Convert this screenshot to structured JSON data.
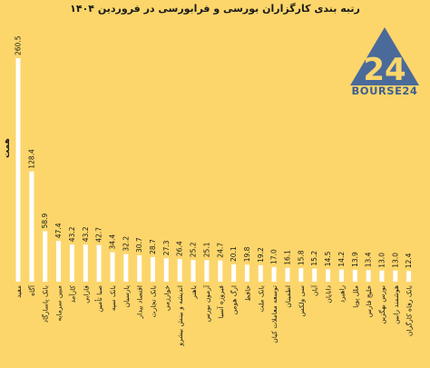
{
  "chart_data": {
    "type": "bar",
    "title": "رتبه بندی کارگزاران بورسی و فرابورسی  در فروردین ۱۴۰۴",
    "xlabel": "",
    "ylabel": "همت",
    "ylim": [
      0,
      280
    ],
    "grid": false,
    "legend": "none",
    "categories": [
      "مفید",
      "آگاه",
      "بانک پاسارگاد",
      "مبین سرمایه",
      "کارآمد",
      "فارابی",
      "صبا تأمین",
      "بانک سپه",
      "پارسیان",
      "اقتصاد بیدار",
      "بانک تجارت",
      "خوارزمی",
      "اندیشه و بینش بیشرو",
      "باهنر",
      "آرمون بورس",
      "فیروزه آسیا",
      "ارگ هومن",
      "حافظ",
      "بانک ملت",
      "توسعه معاملات کیان",
      "اطمینان",
      "سی ولکس",
      "آبان",
      "دانایان",
      "راهبرد",
      "ملل پویا",
      "خلیج فارس",
      "بورس بهگزین",
      "هوشمند رابین",
      "بانک رفاه کارگران"
    ],
    "values": [
      260.5,
      128.4,
      58.9,
      47.4,
      43.2,
      43.2,
      42.7,
      34.4,
      32.2,
      30.7,
      28.7,
      27.3,
      26.4,
      25.2,
      25.1,
      24.7,
      20.1,
      19.8,
      19.2,
      17.0,
      16.1,
      15.8,
      15.2,
      14.5,
      14.2,
      13.9,
      13.4,
      13.0,
      13.0,
      12.4
    ],
    "value_labels": [
      "260.5",
      "128.4",
      "58.9",
      "47.4",
      "43.2",
      "43.2",
      "42.7",
      "34.4",
      "32.2",
      "30.7",
      "28.7",
      "27.3",
      "26.4",
      "25.2",
      "25.1",
      "24.7",
      "20.1",
      "19.8",
      "19.2",
      "17.0",
      "16.1",
      "15.8",
      "15.2",
      "14.5",
      "14.2",
      "13.9",
      "13.4",
      "13.0",
      "13.0",
      "12.4"
    ],
    "bar_color": "#ffffff"
  },
  "logo": {
    "text": "BOURSE24",
    "mark_text": "24",
    "color": "#3f5f8f"
  }
}
